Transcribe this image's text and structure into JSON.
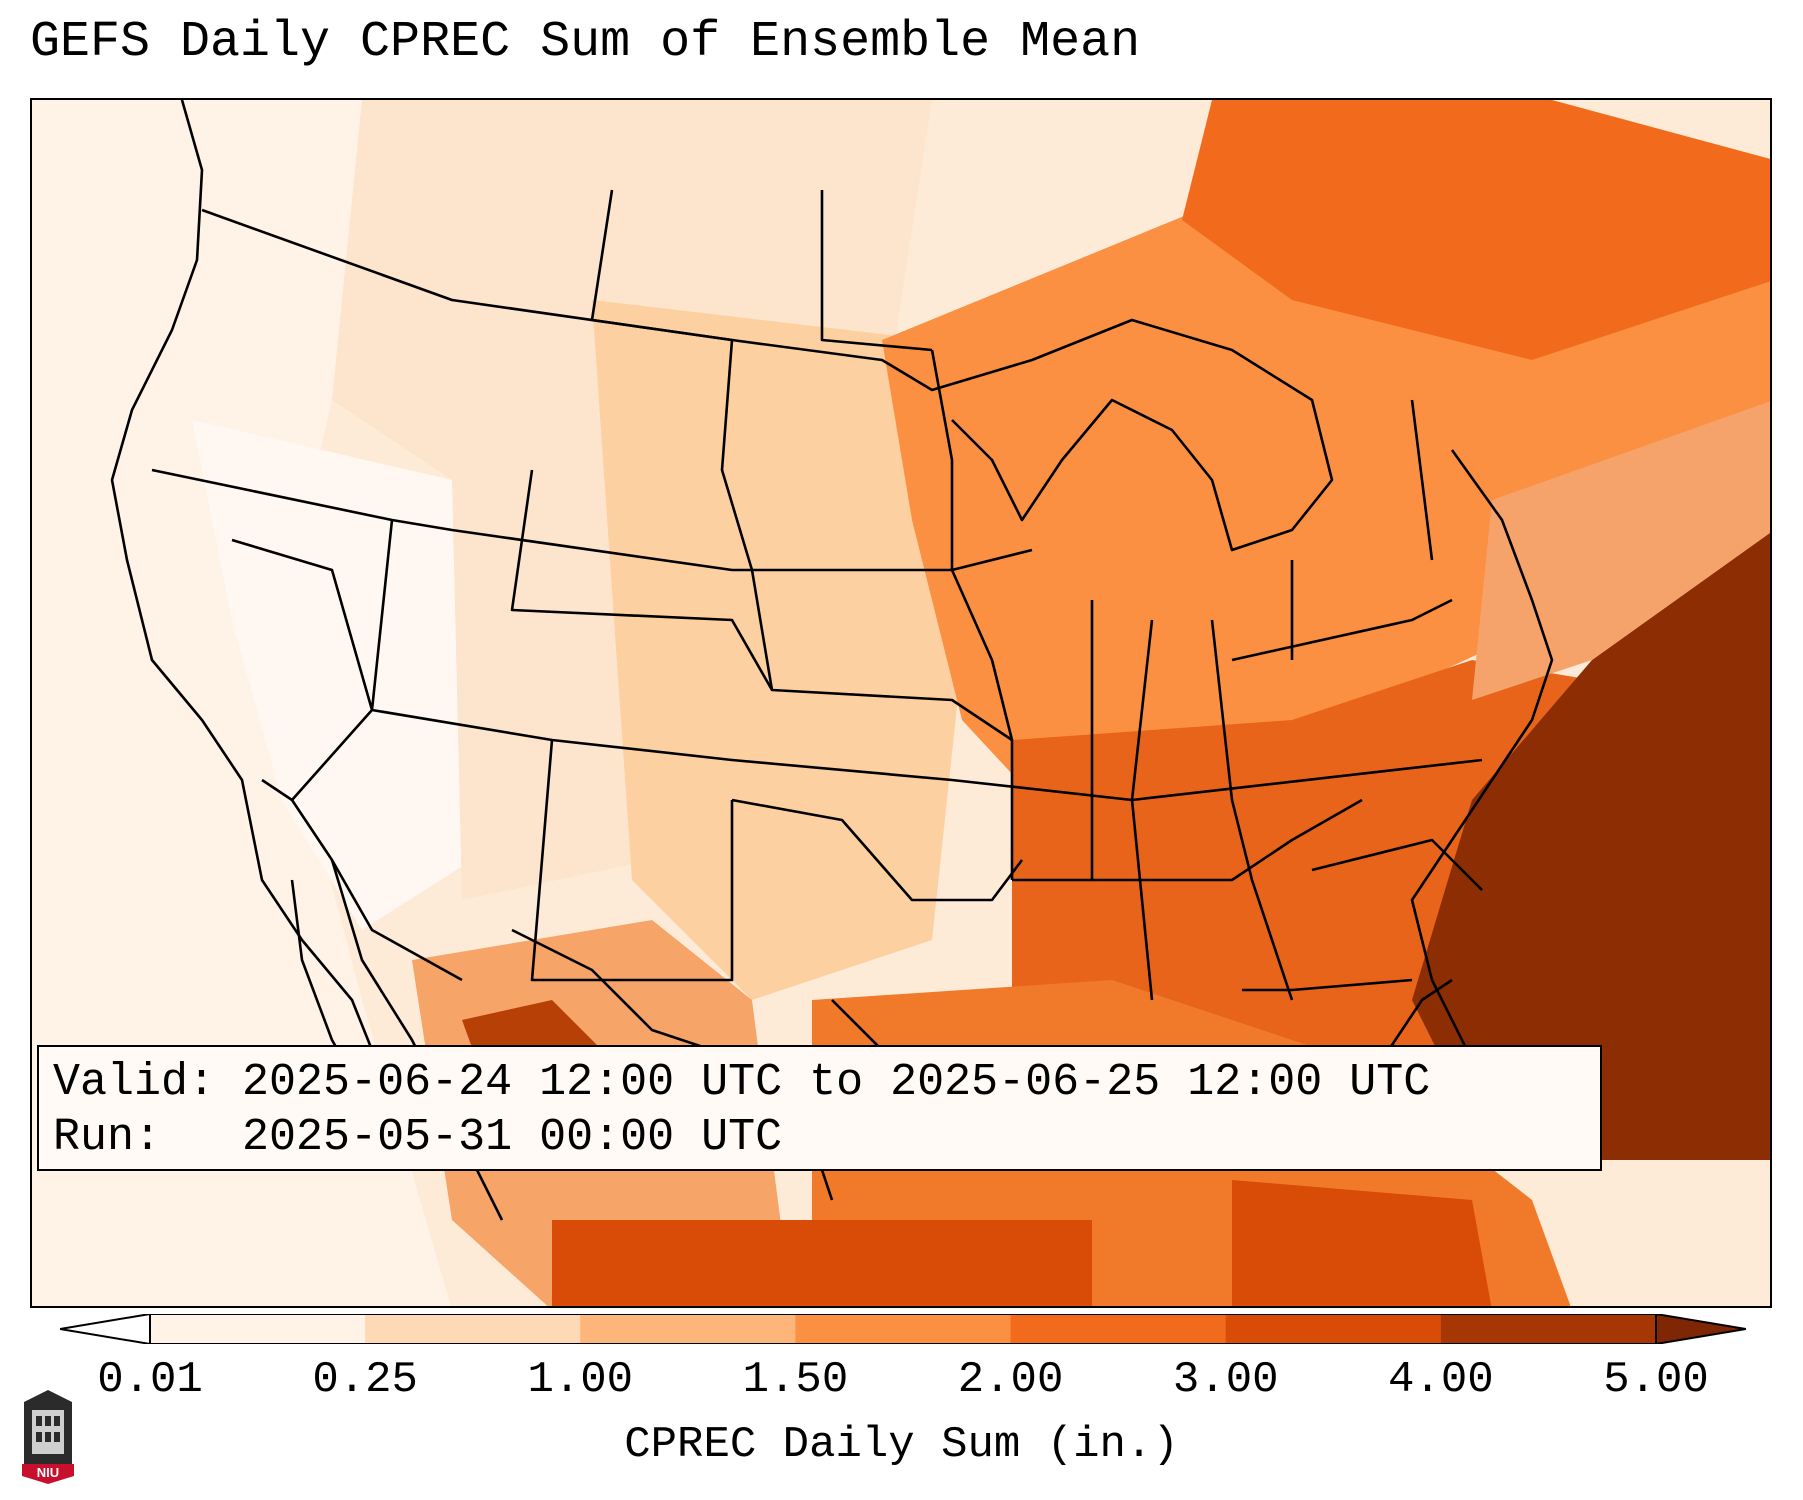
{
  "title": "GEFS Daily CPREC Sum of Ensemble Mean",
  "info": {
    "valid_label": "Valid:",
    "valid_value": "2025-06-24 12:00 UTC to 2025-06-25 12:00 UTC",
    "run_label": "Run:",
    "run_value": "2025-05-31 00:00 UTC"
  },
  "colorbar": {
    "label": "CPREC Daily Sum (in.)",
    "ticks": [
      "0.01",
      "0.25",
      "1.00",
      "1.50",
      "2.00",
      "3.00",
      "4.00",
      "5.00"
    ],
    "bin_colors": [
      "#fff3e8",
      "#fdd9b5",
      "#fdb57a",
      "#fb8f42",
      "#f26b1d",
      "#d94c07",
      "#a63603"
    ],
    "under_color": "#ffffff",
    "over_color": "#7f2704"
  },
  "logo": {
    "text": "NIU",
    "color": "#c8102e"
  },
  "map_regions": {
    "background": "#fee8d4",
    "fills": [
      {
        "name": "pacific-west",
        "color": "#fff3e8"
      },
      {
        "name": "great-basin",
        "color": "#fff8f2"
      },
      {
        "name": "rockies",
        "color": "#fde4cc"
      },
      {
        "name": "plains",
        "color": "#fdd0a2"
      },
      {
        "name": "midwest",
        "color": "#fb8f42"
      },
      {
        "name": "southeast",
        "color": "#e8641a"
      },
      {
        "name": "gulf",
        "color": "#f07a2a"
      },
      {
        "name": "atlantic-max",
        "color": "#8c2d04"
      },
      {
        "name": "mexico-max",
        "color": "#b64006"
      }
    ]
  }
}
